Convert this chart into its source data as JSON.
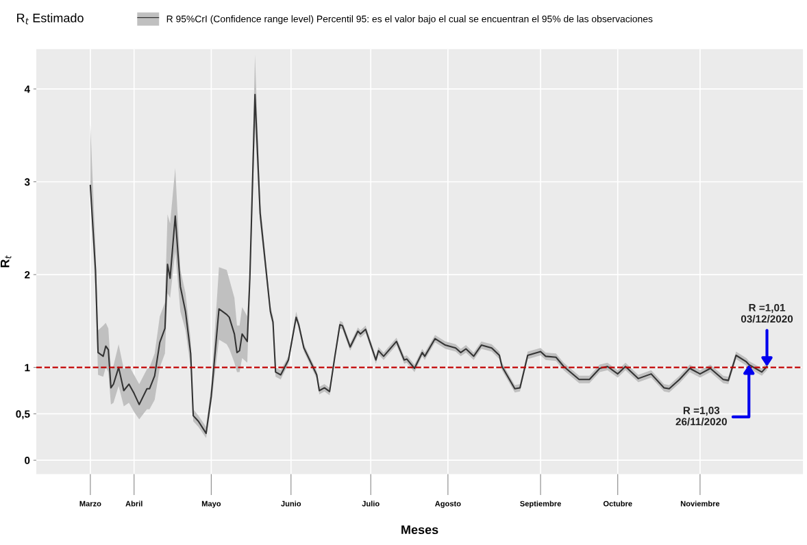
{
  "chart_data": {
    "type": "line",
    "xlabel": "Meses",
    "ylabel": "R$_{t}$",
    "legend_title": "R$_{t}$ Estimado",
    "x": [
      "2020-03-15",
      "2020-03-17",
      "2020-03-18",
      "2020-03-20",
      "2020-03-21",
      "2020-03-22",
      "2020-03-23",
      "2020-03-24",
      "2020-03-26",
      "2020-03-28",
      "2020-03-30",
      "2020-04-01",
      "2020-04-03",
      "2020-04-06",
      "2020-04-07",
      "2020-04-09",
      "2020-04-11",
      "2020-04-13",
      "2020-04-14",
      "2020-04-15",
      "2020-04-17",
      "2020-04-19",
      "2020-04-21",
      "2020-04-23",
      "2020-04-24",
      "2020-04-26",
      "2020-04-29",
      "2020-05-01",
      "2020-05-04",
      "2020-05-07",
      "2020-05-08",
      "2020-05-10",
      "2020-05-11",
      "2020-05-12",
      "2020-05-13",
      "2020-05-15",
      "2020-05-16",
      "2020-05-18",
      "2020-05-20",
      "2020-05-24",
      "2020-05-25",
      "2020-05-26",
      "2020-05-28",
      "2020-05-31",
      "2020-06-03",
      "2020-06-04",
      "2020-06-06",
      "2020-06-11",
      "2020-06-12",
      "2020-06-14",
      "2020-06-16",
      "2020-06-18",
      "2020-06-20",
      "2020-06-21",
      "2020-06-24",
      "2020-06-27",
      "2020-06-28",
      "2020-06-30",
      "2020-07-04",
      "2020-07-05",
      "2020-07-07",
      "2020-07-12",
      "2020-07-15",
      "2020-07-16",
      "2020-07-19",
      "2020-07-22",
      "2020-07-23",
      "2020-07-27",
      "2020-07-31",
      "2020-08-04",
      "2020-08-06",
      "2020-08-08",
      "2020-08-11",
      "2020-08-14",
      "2020-08-18",
      "2020-08-21",
      "2020-08-22",
      "2020-08-27",
      "2020-08-29",
      "2020-09-01",
      "2020-09-06",
      "2020-09-08",
      "2020-09-12",
      "2020-09-15",
      "2020-09-21",
      "2020-09-25",
      "2020-09-29",
      "2020-10-02",
      "2020-10-06",
      "2020-10-09",
      "2020-10-14",
      "2020-10-19",
      "2020-10-24",
      "2020-10-26",
      "2020-10-30",
      "2020-11-03",
      "2020-11-07",
      "2020-11-11",
      "2020-11-16",
      "2020-11-18",
      "2020-11-21",
      "2020-11-25",
      "2020-11-26",
      "2020-12-01",
      "2020-12-03"
    ],
    "series": [
      {
        "name": "R 95%CrI (Confidence range level) Percentil 95: es el valor bajo el cual se encuentran el 95% de las observaciones",
        "color": "#333333",
        "values": [
          2.96,
          2.05,
          1.16,
          1.12,
          1.23,
          1.19,
          0.78,
          0.82,
          1.0,
          0.75,
          0.82,
          0.72,
          0.6,
          0.77,
          0.77,
          0.91,
          1.27,
          1.42,
          2.11,
          1.96,
          2.63,
          1.87,
          1.6,
          1.15,
          0.48,
          0.42,
          0.29,
          0.69,
          1.63,
          1.57,
          1.54,
          1.36,
          1.16,
          1.18,
          1.36,
          1.28,
          1.96,
          3.94,
          2.66,
          1.6,
          1.49,
          0.95,
          0.92,
          1.08,
          1.54,
          1.46,
          1.21,
          0.92,
          0.75,
          0.78,
          0.74,
          1.11,
          1.46,
          1.45,
          1.22,
          1.39,
          1.36,
          1.41,
          1.08,
          1.18,
          1.12,
          1.28,
          1.08,
          1.09,
          0.99,
          1.16,
          1.12,
          1.31,
          1.24,
          1.21,
          1.16,
          1.2,
          1.12,
          1.24,
          1.21,
          1.13,
          1.01,
          0.77,
          0.78,
          1.13,
          1.17,
          1.12,
          1.11,
          1.01,
          0.87,
          0.87,
          0.99,
          1.01,
          0.93,
          1.01,
          0.88,
          0.93,
          0.78,
          0.77,
          0.87,
          0.99,
          0.93,
          0.99,
          0.87,
          0.86,
          1.13,
          1.06,
          1.03,
          0.95,
          1.01
        ],
        "lower": [
          2.9,
          1.8,
          0.92,
          0.9,
          1.0,
          0.95,
          0.6,
          0.62,
          0.8,
          0.58,
          0.62,
          0.52,
          0.44,
          0.55,
          0.55,
          0.65,
          1.0,
          1.15,
          1.8,
          1.75,
          2.25,
          1.6,
          1.4,
          1.0,
          0.42,
          0.36,
          0.24,
          0.6,
          1.3,
          1.25,
          1.2,
          1.05,
          0.95,
          0.95,
          1.1,
          1.05,
          1.85,
          3.6,
          2.55,
          1.55,
          1.44,
          0.9,
          0.87,
          1.04,
          1.5,
          1.42,
          1.17,
          0.88,
          0.71,
          0.74,
          0.7,
          1.07,
          1.42,
          1.41,
          1.18,
          1.35,
          1.32,
          1.37,
          1.04,
          1.14,
          1.08,
          1.24,
          1.04,
          1.05,
          0.95,
          1.12,
          1.08,
          1.27,
          1.2,
          1.17,
          1.12,
          1.16,
          1.08,
          1.2,
          1.17,
          1.09,
          0.97,
          0.73,
          0.74,
          1.09,
          1.13,
          1.08,
          1.07,
          0.97,
          0.83,
          0.83,
          0.95,
          0.97,
          0.89,
          0.97,
          0.84,
          0.89,
          0.74,
          0.73,
          0.83,
          0.95,
          0.89,
          0.95,
          0.83,
          0.82,
          1.09,
          1.02,
          0.99,
          0.91,
          0.97
        ],
        "upper": [
          3.62,
          2.3,
          1.4,
          1.45,
          1.48,
          1.42,
          0.98,
          1.02,
          1.25,
          0.98,
          1.02,
          0.92,
          0.82,
          0.98,
          1.0,
          1.15,
          1.55,
          1.7,
          2.65,
          2.55,
          3.15,
          2.05,
          1.8,
          1.3,
          0.55,
          0.48,
          0.36,
          0.8,
          2.08,
          2.05,
          1.95,
          1.75,
          1.45,
          1.45,
          1.65,
          1.55,
          2.05,
          4.37,
          2.78,
          1.66,
          1.55,
          1.0,
          0.97,
          1.12,
          1.6,
          1.5,
          1.25,
          0.96,
          0.79,
          0.82,
          0.78,
          1.15,
          1.5,
          1.49,
          1.26,
          1.43,
          1.4,
          1.45,
          1.12,
          1.22,
          1.16,
          1.32,
          1.12,
          1.13,
          1.03,
          1.2,
          1.16,
          1.35,
          1.28,
          1.25,
          1.2,
          1.24,
          1.16,
          1.28,
          1.25,
          1.17,
          1.05,
          0.81,
          0.82,
          1.17,
          1.21,
          1.16,
          1.15,
          1.05,
          0.91,
          0.91,
          1.03,
          1.05,
          0.97,
          1.05,
          0.92,
          0.97,
          0.82,
          0.81,
          0.91,
          1.03,
          0.97,
          1.03,
          0.91,
          0.9,
          1.17,
          1.1,
          1.07,
          0.99,
          1.05
        ]
      }
    ],
    "xlim": [
      "2020-02-23",
      "2020-12-17"
    ],
    "ylim": [
      -0.15,
      4.43
    ],
    "xticks": [
      {
        "value": "2020-03-15",
        "label": "Marzo"
      },
      {
        "value": "2020-04-01",
        "label": "Abril"
      },
      {
        "value": "2020-05-01",
        "label": "Mayo"
      },
      {
        "value": "2020-06-01",
        "label": "Junio"
      },
      {
        "value": "2020-07-02",
        "label": "Julio"
      },
      {
        "value": "2020-08-01",
        "label": "Agosto"
      },
      {
        "value": "2020-09-06",
        "label": "Septiembre"
      },
      {
        "value": "2020-10-06",
        "label": "Octubre"
      },
      {
        "value": "2020-11-07",
        "label": "Noviembre"
      }
    ],
    "yticks": [
      0,
      {
        "value": 0.5,
        "label": "0,5"
      },
      1,
      2,
      3,
      4
    ],
    "ref_lines": [
      {
        "axis": "y",
        "value": 1,
        "color": "#c00000",
        "line_style": "dashed"
      }
    ],
    "annotations": [
      {
        "text": "R =1,01\n03/12/2020",
        "x": "2020-12-03",
        "y": 1.01
      },
      {
        "text": "R =1,03\n26/11/2020",
        "x": "2020-11-26",
        "y": 1.03
      }
    ],
    "grid": true,
    "legend": "top left",
    "marker": "none",
    "line_style": "solid"
  }
}
